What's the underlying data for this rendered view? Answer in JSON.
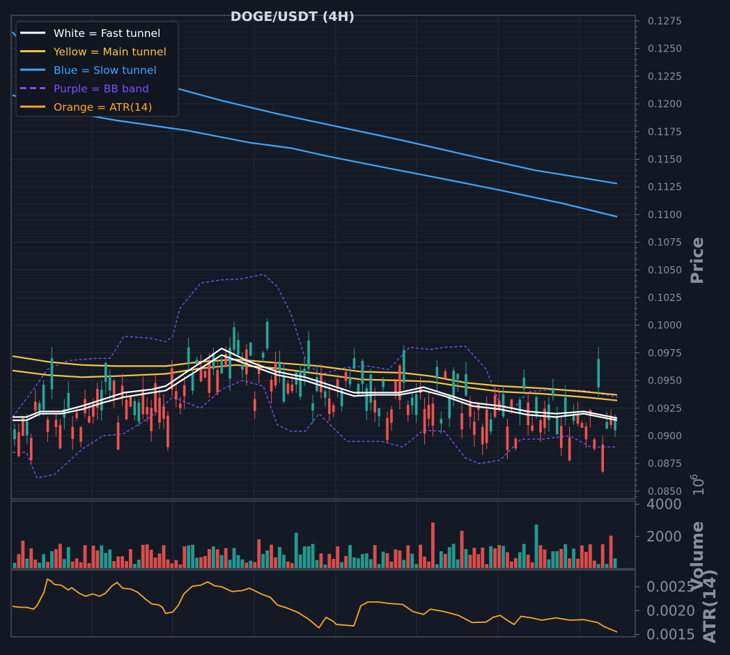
{
  "colors": {
    "background": "#131722",
    "panel": "#141a25",
    "frame": "#3b404a",
    "grid": "#242a36",
    "text": "#d8dbe2",
    "muted": "#8a8f99",
    "up": "#26a69a",
    "down": "#ef5350",
    "fast": "#ffffff",
    "main": "#f5c542",
    "slow": "#3ea6ff",
    "bb": "#7c4dff",
    "atr": "#ffa726"
  },
  "chart_data": {
    "type": "candlestick",
    "title": "DOGE/USDT (4H)",
    "legend_position": "top-left",
    "grid": true,
    "legend": [
      {
        "label": "White = Fast tunnel",
        "color": "#ffffff",
        "style": "solid"
      },
      {
        "label": "Yellow = Main tunnel",
        "color": "#f5c542",
        "style": "solid"
      },
      {
        "label": "Blue = Slow tunnel",
        "color": "#3ea6ff",
        "style": "solid"
      },
      {
        "label": "Purple = BB band",
        "color": "#7c4dff",
        "style": "dashed"
      },
      {
        "label": "Orange = ATR(14)",
        "color": "#ffa726",
        "style": "solid"
      }
    ],
    "price_panel": {
      "ylabel": "Price",
      "ylim": [
        0.0843,
        0.128
      ],
      "ticks": [
        "0.0850",
        "0.0875",
        "0.0900",
        "0.0925",
        "0.0950",
        "0.0975",
        "0.1000",
        "0.1025",
        "0.1050",
        "0.1075",
        "0.1100",
        "0.1125",
        "0.1150",
        "0.1175",
        "0.1200",
        "0.1225",
        "0.1250",
        "0.1275"
      ],
      "slow_tunnel": [
        {
          "name": "Blue = Slow tunnel (upper)",
          "values": [
            [
              0,
              0.1265
            ],
            [
              25,
              0.1245
            ],
            [
              75,
              0.1235
            ],
            [
              150,
              0.1225
            ],
            [
              230,
              0.1215
            ],
            [
              300,
              0.1203
            ],
            [
              380,
              0.1191
            ],
            [
              470,
              0.1179
            ],
            [
              560,
              0.1167
            ],
            [
              650,
              0.1154
            ],
            [
              750,
              0.114
            ],
            [
              868,
              0.1128
            ]
          ]
        },
        {
          "name": "Blue = Slow tunnel (lower)",
          "values": [
            [
              0,
              0.1208
            ],
            [
              50,
              0.1196
            ],
            [
              150,
              0.1185
            ],
            [
              250,
              0.1176
            ],
            [
              340,
              0.1165
            ],
            [
              400,
              0.116
            ],
            [
              450,
              0.1153
            ],
            [
              530,
              0.1143
            ],
            [
              620,
              0.1132
            ],
            [
              700,
              0.1122
            ],
            [
              790,
              0.111
            ],
            [
              868,
              0.1098
            ]
          ]
        }
      ],
      "main_tunnel": [
        {
          "name": "Yellow = Main tunnel (upper)",
          "values": [
            [
              0,
              0.0972
            ],
            [
              50,
              0.0967
            ],
            [
              100,
              0.0964
            ],
            [
              150,
              0.0963
            ],
            [
              220,
              0.0963
            ],
            [
              270,
              0.0967
            ],
            [
              320,
              0.0969
            ],
            [
              380,
              0.0966
            ],
            [
              440,
              0.0963
            ],
            [
              500,
              0.0958
            ],
            [
              560,
              0.0957
            ],
            [
              600,
              0.0954
            ],
            [
              650,
              0.0948
            ],
            [
              700,
              0.0945
            ],
            [
              760,
              0.0943
            ],
            [
              820,
              0.094
            ],
            [
              868,
              0.0937
            ]
          ]
        },
        {
          "name": "Yellow = Main tunnel (lower)",
          "values": [
            [
              0,
              0.0959
            ],
            [
              50,
              0.0955
            ],
            [
              100,
              0.0953
            ],
            [
              150,
              0.0954
            ],
            [
              220,
              0.0956
            ],
            [
              270,
              0.0961
            ],
            [
              320,
              0.0964
            ],
            [
              380,
              0.0961
            ],
            [
              440,
              0.0956
            ],
            [
              500,
              0.0951
            ],
            [
              560,
              0.095
            ],
            [
              600,
              0.0949
            ],
            [
              650,
              0.0944
            ],
            [
              700,
              0.094
            ],
            [
              760,
              0.0938
            ],
            [
              820,
              0.0935
            ],
            [
              868,
              0.0932
            ]
          ]
        }
      ],
      "fast_tunnel": [
        {
          "name": "White = Fast tunnel (upper)",
          "values": [
            [
              0,
              0.0917
            ],
            [
              20,
              0.0917
            ],
            [
              40,
              0.0922
            ],
            [
              70,
              0.0922
            ],
            [
              100,
              0.0927
            ],
            [
              130,
              0.0933
            ],
            [
              160,
              0.0939
            ],
            [
              200,
              0.0942
            ],
            [
              220,
              0.0945
            ],
            [
              260,
              0.0962
            ],
            [
              280,
              0.097
            ],
            [
              300,
              0.0979
            ],
            [
              340,
              0.0967
            ],
            [
              380,
              0.0958
            ],
            [
              420,
              0.0953
            ],
            [
              460,
              0.0945
            ],
            [
              490,
              0.0939
            ],
            [
              520,
              0.0939
            ],
            [
              555,
              0.0939
            ],
            [
              590,
              0.0944
            ],
            [
              620,
              0.0938
            ],
            [
              660,
              0.093
            ],
            [
              700,
              0.0927
            ],
            [
              740,
              0.0922
            ],
            [
              780,
              0.092
            ],
            [
              820,
              0.0922
            ],
            [
              868,
              0.0916
            ]
          ]
        },
        {
          "name": "White = Fast tunnel (lower)",
          "values": [
            [
              0,
              0.0914
            ],
            [
              20,
              0.0914
            ],
            [
              40,
              0.092
            ],
            [
              70,
              0.092
            ],
            [
              100,
              0.0924
            ],
            [
              130,
              0.093
            ],
            [
              160,
              0.0935
            ],
            [
              200,
              0.0939
            ],
            [
              220,
              0.0941
            ],
            [
              260,
              0.0957
            ],
            [
              280,
              0.0965
            ],
            [
              300,
              0.0973
            ],
            [
              340,
              0.0964
            ],
            [
              380,
              0.0955
            ],
            [
              420,
              0.095
            ],
            [
              460,
              0.0942
            ],
            [
              490,
              0.0936
            ],
            [
              520,
              0.0937
            ],
            [
              555,
              0.0937
            ],
            [
              590,
              0.0941
            ],
            [
              620,
              0.0936
            ],
            [
              660,
              0.0927
            ],
            [
              700,
              0.0924
            ],
            [
              740,
              0.0919
            ],
            [
              780,
              0.0917
            ],
            [
              820,
              0.092
            ],
            [
              868,
              0.0914
            ]
          ]
        }
      ],
      "bb_band": [
        {
          "name": "Purple = BB band (upper)",
          "values": [
            [
              0,
              0.0917
            ],
            [
              30,
              0.0942
            ],
            [
              50,
              0.096
            ],
            [
              80,
              0.0968
            ],
            [
              120,
              0.097
            ],
            [
              140,
              0.097
            ],
            [
              160,
              0.099
            ],
            [
              200,
              0.0988
            ],
            [
              220,
              0.0985
            ],
            [
              230,
              0.099
            ],
            [
              240,
              0.1015
            ],
            [
              270,
              0.1038
            ],
            [
              300,
              0.1041
            ],
            [
              330,
              0.1042
            ],
            [
              360,
              0.1046
            ],
            [
              380,
              0.1035
            ],
            [
              400,
              0.101
            ],
            [
              420,
              0.097
            ],
            [
              440,
              0.0955
            ],
            [
              480,
              0.0962
            ],
            [
              510,
              0.0963
            ],
            [
              540,
              0.096
            ],
            [
              570,
              0.098
            ],
            [
              600,
              0.0978
            ],
            [
              620,
              0.098
            ],
            [
              650,
              0.0981
            ],
            [
              680,
              0.096
            ],
            [
              700,
              0.0928
            ],
            [
              720,
              0.0925
            ],
            [
              740,
              0.094
            ],
            [
              780,
              0.0942
            ],
            [
              820,
              0.0941
            ],
            [
              868,
              0.0935
            ]
          ]
        },
        {
          "name": "Purple = BB band (lower)",
          "values": [
            [
              0,
              0.0885
            ],
            [
              20,
              0.0885
            ],
            [
              35,
              0.0862
            ],
            [
              60,
              0.0865
            ],
            [
              100,
              0.0888
            ],
            [
              130,
              0.09
            ],
            [
              160,
              0.0902
            ],
            [
              200,
              0.0918
            ],
            [
              230,
              0.0935
            ],
            [
              250,
              0.093
            ],
            [
              270,
              0.0925
            ],
            [
              300,
              0.0942
            ],
            [
              330,
              0.095
            ],
            [
              360,
              0.0945
            ],
            [
              380,
              0.091
            ],
            [
              400,
              0.0904
            ],
            [
              420,
              0.0904
            ],
            [
              440,
              0.092
            ],
            [
              480,
              0.0895
            ],
            [
              500,
              0.0895
            ],
            [
              530,
              0.0895
            ],
            [
              560,
              0.089
            ],
            [
              590,
              0.0905
            ],
            [
              620,
              0.0904
            ],
            [
              650,
              0.088
            ],
            [
              670,
              0.0875
            ],
            [
              700,
              0.0878
            ],
            [
              730,
              0.0897
            ],
            [
              760,
              0.0897
            ],
            [
              800,
              0.09
            ],
            [
              830,
              0.089
            ],
            [
              868,
              0.089
            ]
          ]
        }
      ]
    },
    "volume_panel": {
      "ylabel": "Volume",
      "ylim": [
        0,
        4200
      ],
      "ticks": [
        "2000",
        "4000"
      ],
      "scale_label": "10^6"
    },
    "atr_panel": {
      "ylabel": "ATR(14)",
      "ylim": [
        0.00145,
        0.00285
      ],
      "ticks": [
        "0.0015",
        "0.0020",
        "0.0025"
      ],
      "values": [
        [
          0,
          0.00209
        ],
        [
          10,
          0.00207
        ],
        [
          20,
          0.00207
        ],
        [
          30,
          0.00203
        ],
        [
          35,
          0.0021
        ],
        [
          45,
          0.00238
        ],
        [
          50,
          0.00266
        ],
        [
          55,
          0.00262
        ],
        [
          60,
          0.00255
        ],
        [
          70,
          0.00253
        ],
        [
          80,
          0.00243
        ],
        [
          85,
          0.00248
        ],
        [
          95,
          0.00237
        ],
        [
          105,
          0.0023
        ],
        [
          115,
          0.00235
        ],
        [
          125,
          0.0023
        ],
        [
          133,
          0.00236
        ],
        [
          143,
          0.00252
        ],
        [
          150,
          0.00259
        ],
        [
          158,
          0.00247
        ],
        [
          170,
          0.00245
        ],
        [
          180,
          0.00238
        ],
        [
          190,
          0.00225
        ],
        [
          200,
          0.00214
        ],
        [
          210,
          0.00212
        ],
        [
          215,
          0.00207
        ],
        [
          220,
          0.00194
        ],
        [
          230,
          0.00197
        ],
        [
          238,
          0.00211
        ],
        [
          246,
          0.00235
        ],
        [
          258,
          0.00251
        ],
        [
          270,
          0.00253
        ],
        [
          280,
          0.0026
        ],
        [
          290,
          0.00252
        ],
        [
          300,
          0.0025
        ],
        [
          315,
          0.0024
        ],
        [
          330,
          0.00242
        ],
        [
          340,
          0.00247
        ],
        [
          350,
          0.0024
        ],
        [
          360,
          0.00233
        ],
        [
          370,
          0.00228
        ],
        [
          380,
          0.00212
        ],
        [
          395,
          0.00205
        ],
        [
          410,
          0.00196
        ],
        [
          425,
          0.00182
        ],
        [
          440,
          0.00164
        ],
        [
          450,
          0.00186
        ],
        [
          460,
          0.00178
        ],
        [
          465,
          0.00171
        ],
        [
          490,
          0.00168
        ],
        [
          500,
          0.0021
        ],
        [
          510,
          0.00218
        ],
        [
          525,
          0.00218
        ],
        [
          540,
          0.00215
        ],
        [
          560,
          0.00213
        ],
        [
          575,
          0.00198
        ],
        [
          590,
          0.00192
        ],
        [
          600,
          0.00203
        ],
        [
          620,
          0.00198
        ],
        [
          640,
          0.0019
        ],
        [
          660,
          0.00175
        ],
        [
          680,
          0.00176
        ],
        [
          690,
          0.00186
        ],
        [
          700,
          0.0019
        ],
        [
          710,
          0.0018
        ],
        [
          720,
          0.00171
        ],
        [
          730,
          0.00188
        ],
        [
          745,
          0.00185
        ],
        [
          760,
          0.0018
        ],
        [
          780,
          0.00185
        ],
        [
          800,
          0.0018
        ],
        [
          820,
          0.00181
        ],
        [
          840,
          0.00175
        ],
        [
          850,
          0.00166
        ],
        [
          868,
          0.00155
        ]
      ]
    }
  }
}
